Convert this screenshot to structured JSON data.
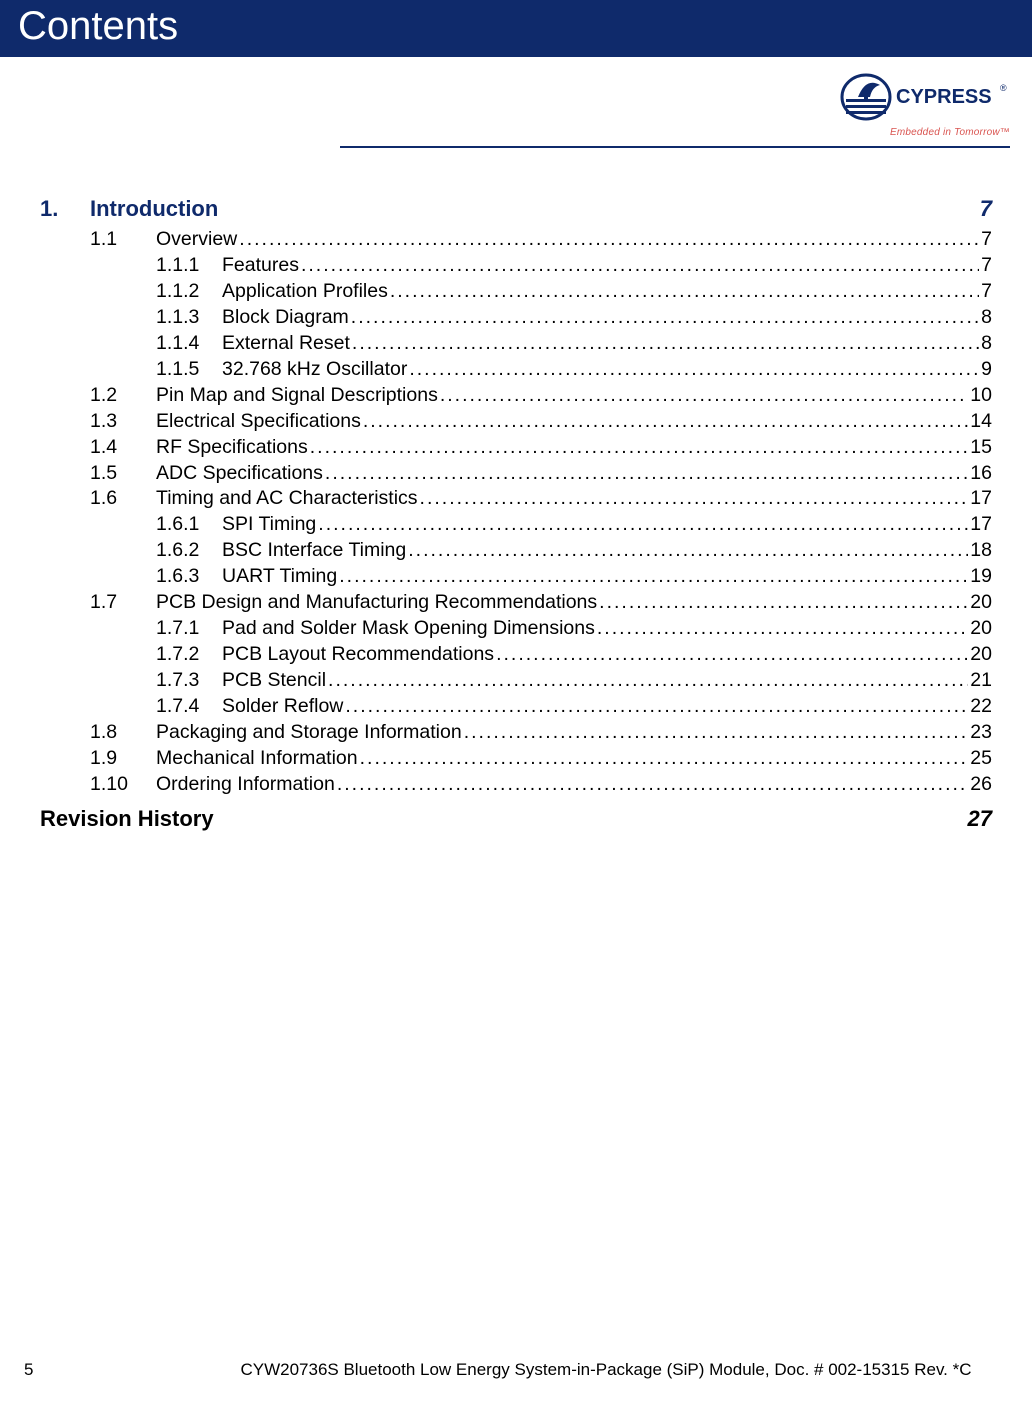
{
  "colors": {
    "banner_bg": "#0f2a6b",
    "banner_fg": "#ffffff",
    "heading_fg": "#0f2a6b",
    "tagline_fg": "#d9534f",
    "body_fg": "#000000",
    "page_bg": "#ffffff"
  },
  "banner": {
    "title": "Contents"
  },
  "logo": {
    "brand": "CYPRESS",
    "tagline": "Embedded in Tomorrow™"
  },
  "toc": {
    "chapter": {
      "num": "1.",
      "title": "Introduction",
      "page": "7"
    },
    "entries": [
      {
        "level": 1,
        "num": "1.1",
        "title": "Overview",
        "page": "7"
      },
      {
        "level": 2,
        "num": "1.1.1",
        "title": "Features",
        "page": "7"
      },
      {
        "level": 2,
        "num": "1.1.2",
        "title": "Application Profiles",
        "page": "7"
      },
      {
        "level": 2,
        "num": "1.1.3",
        "title": "Block Diagram",
        "page": "8"
      },
      {
        "level": 2,
        "num": "1.1.4",
        "title": "External Reset",
        "page": "8"
      },
      {
        "level": 2,
        "num": "1.1.5",
        "title": "32.768 kHz Oscillator",
        "page": "9"
      },
      {
        "level": 1,
        "num": "1.2",
        "title": "Pin Map and Signal Descriptions",
        "page": "10"
      },
      {
        "level": 1,
        "num": "1.3",
        "title": "Electrical Specifications",
        "page": "14"
      },
      {
        "level": 1,
        "num": "1.4",
        "title": "RF Specifications",
        "page": "15"
      },
      {
        "level": 1,
        "num": "1.5",
        "title": "ADC Specifications",
        "page": "16"
      },
      {
        "level": 1,
        "num": "1.6",
        "title": "Timing and AC Characteristics",
        "page": "17"
      },
      {
        "level": 2,
        "num": "1.6.1",
        "title": "SPI Timing",
        "page": "17"
      },
      {
        "level": 2,
        "num": "1.6.2",
        "title": "BSC Interface Timing",
        "page": "18"
      },
      {
        "level": 2,
        "num": "1.6.3",
        "title": "UART Timing",
        "page": "19"
      },
      {
        "level": 1,
        "num": "1.7",
        "title": "PCB Design and Manufacturing Recommendations",
        "page": "20"
      },
      {
        "level": 2,
        "num": "1.7.1",
        "title": "Pad and Solder Mask Opening Dimensions",
        "page": "20"
      },
      {
        "level": 2,
        "num": "1.7.2",
        "title": "PCB Layout Recommendations",
        "page": "20"
      },
      {
        "level": 2,
        "num": "1.7.3",
        "title": "PCB Stencil",
        "page": "21"
      },
      {
        "level": 2,
        "num": "1.7.4",
        "title": "Solder Reflow",
        "page": "22"
      },
      {
        "level": 1,
        "num": "1.8",
        "title": "Packaging and Storage Information",
        "page": "23"
      },
      {
        "level": 1,
        "num": "1.9",
        "title": "Mechanical Information",
        "page": "25"
      },
      {
        "level": 1,
        "num": "1.10",
        "title": "Ordering Information",
        "page": "26"
      }
    ],
    "revision": {
      "title": "Revision History",
      "page": "27"
    }
  },
  "footer": {
    "page_number": "5",
    "text": "CYW20736S Bluetooth Low Energy System-in-Package (SiP) Module, Doc. # 002-15315 Rev. *C"
  }
}
